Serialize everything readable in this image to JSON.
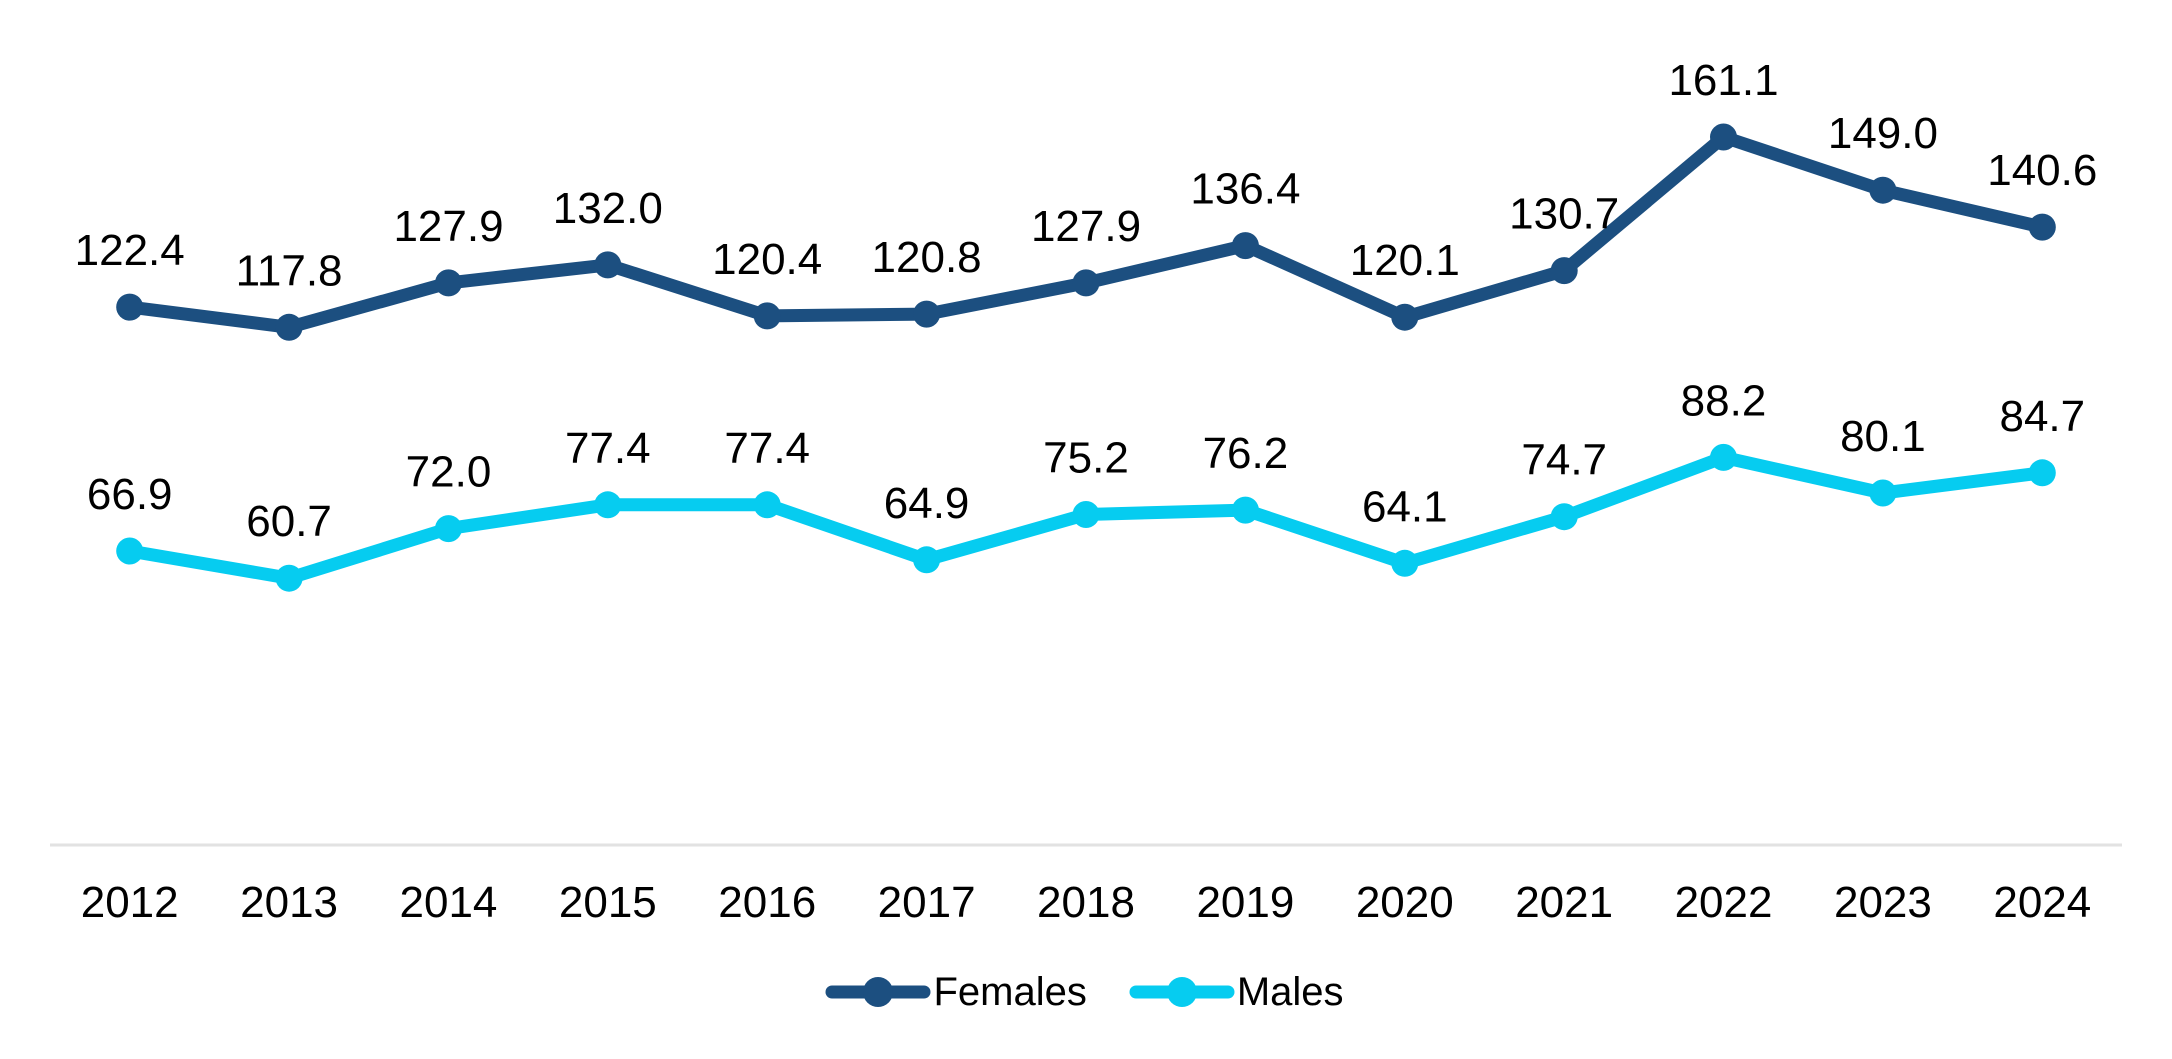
{
  "chart_data": {
    "type": "line",
    "title": "",
    "xlabel": "",
    "ylabel": "",
    "categories": [
      "2012",
      "2013",
      "2014",
      "2015",
      "2016",
      "2017",
      "2018",
      "2019",
      "2020",
      "2021",
      "2022",
      "2023",
      "2024"
    ],
    "series": [
      {
        "name": "Females",
        "color": "#1C4F80",
        "values": [
          122.4,
          117.8,
          127.9,
          132.0,
          120.4,
          120.8,
          127.9,
          136.4,
          120.1,
          130.7,
          161.1,
          149.0,
          140.6
        ]
      },
      {
        "name": "Males",
        "color": "#06CCF0",
        "values": [
          66.9,
          60.7,
          72.0,
          77.4,
          77.4,
          64.9,
          75.2,
          76.2,
          64.1,
          74.7,
          88.2,
          80.1,
          84.7
        ]
      }
    ],
    "ylim": [
      0,
      190
    ],
    "grid": false,
    "y_axis_visible": false,
    "legend_position": "bottom",
    "data_labels": true,
    "label_decimals": 1,
    "colors": {
      "axis_line": "#E2E2E2",
      "text": "#000000",
      "background": "#FFFFFF"
    }
  }
}
